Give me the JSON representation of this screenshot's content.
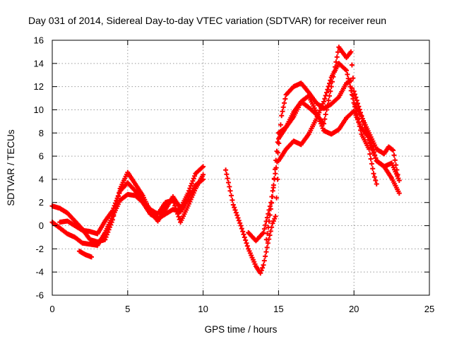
{
  "chart_data": {
    "type": "scatter",
    "title": "Day 031 of 2014, Sidereal Day-to-day VTEC variation (SDTVAR) for receiver reun",
    "xlabel": "GPS time / hours",
    "ylabel": "SDTVAR / TECUs",
    "xlim": [
      0,
      25
    ],
    "ylim": [
      -6,
      16
    ],
    "xticks": [
      0,
      5,
      10,
      15,
      20,
      25
    ],
    "yticks": [
      -6,
      -4,
      -2,
      0,
      2,
      4,
      6,
      8,
      10,
      12,
      14,
      16
    ],
    "grid": true,
    "marker": "plus",
    "color": "#ff0000",
    "series": [
      {
        "name": "s1",
        "points": [
          [
            0.0,
            1.7
          ],
          [
            0.5,
            1.5
          ],
          [
            1.0,
            1.1
          ],
          [
            1.5,
            0.4
          ],
          [
            2.0,
            -0.3
          ],
          [
            2.5,
            -1.2
          ],
          [
            3.0,
            -1.4
          ],
          [
            3.5,
            -1.2
          ],
          [
            4.0,
            0.5
          ],
          [
            4.5,
            3.2
          ],
          [
            5.0,
            4.6
          ],
          [
            5.5,
            3.6
          ],
          [
            6.0,
            2.6
          ],
          [
            6.5,
            1.2
          ],
          [
            7.0,
            0.4
          ],
          [
            7.5,
            1.4
          ],
          [
            8.0,
            2.5
          ],
          [
            8.5,
            1.5
          ],
          [
            9.0,
            2.8
          ],
          [
            9.5,
            4.5
          ],
          [
            10.0,
            5.1
          ]
        ]
      },
      {
        "name": "s2",
        "points": [
          [
            0.0,
            0.3
          ],
          [
            0.5,
            -0.2
          ],
          [
            1.0,
            -0.7
          ],
          [
            1.5,
            -1.0
          ],
          [
            2.0,
            -1.5
          ],
          [
            2.5,
            -1.6
          ],
          [
            3.0,
            -1.7
          ],
          [
            3.5,
            -0.6
          ],
          [
            4.0,
            0.8
          ],
          [
            4.5,
            2.2
          ],
          [
            5.0,
            2.7
          ],
          [
            5.5,
            2.6
          ],
          [
            6.0,
            2.0
          ],
          [
            6.5,
            1.0
          ],
          [
            7.0,
            0.6
          ],
          [
            7.5,
            1.0
          ],
          [
            8.0,
            1.4
          ],
          [
            8.5,
            1.2
          ],
          [
            9.0,
            2.3
          ],
          [
            9.5,
            3.5
          ],
          [
            10.0,
            4.0
          ]
        ]
      },
      {
        "name": "s3",
        "points": [
          [
            0.5,
            0.3
          ],
          [
            1.0,
            0.4
          ],
          [
            1.5,
            0.0
          ],
          [
            2.0,
            -0.4
          ],
          [
            2.5,
            -0.5
          ],
          [
            3.0,
            -0.7
          ],
          [
            3.5,
            0.4
          ],
          [
            4.0,
            1.3
          ],
          [
            4.5,
            3.0
          ],
          [
            5.0,
            3.7
          ],
          [
            5.5,
            3.0
          ],
          [
            6.0,
            2.2
          ],
          [
            6.5,
            1.4
          ],
          [
            7.0,
            1.0
          ],
          [
            7.5,
            2.0
          ],
          [
            8.0,
            2.2
          ],
          [
            8.5,
            0.3
          ],
          [
            9.0,
            1.7
          ],
          [
            9.5,
            3.2
          ],
          [
            10.0,
            4.4
          ]
        ]
      },
      {
        "name": "s4",
        "points": [
          [
            1.8,
            -2.2
          ],
          [
            2.2,
            -2.5
          ],
          [
            2.6,
            -2.7
          ]
        ]
      },
      {
        "name": "s5",
        "points": [
          [
            11.5,
            4.8
          ],
          [
            11.8,
            3.0
          ],
          [
            12.0,
            1.8
          ],
          [
            12.5,
            0.0
          ],
          [
            13.0,
            -2.0
          ],
          [
            13.5,
            -3.5
          ],
          [
            13.8,
            -4.1
          ],
          [
            14.0,
            -3.4
          ],
          [
            14.3,
            -1.5
          ],
          [
            14.6,
            0.2
          ],
          [
            14.8,
            0.8
          ],
          [
            15.0,
            5.6
          ],
          [
            15.5,
            6.6
          ],
          [
            16.0,
            7.3
          ],
          [
            16.5,
            7.0
          ],
          [
            17.0,
            7.9
          ],
          [
            17.5,
            9.2
          ],
          [
            18.0,
            10.7
          ],
          [
            18.5,
            12.8
          ],
          [
            19.0,
            14.0
          ],
          [
            19.5,
            13.4
          ],
          [
            20.0,
            10.6
          ],
          [
            20.5,
            7.9
          ],
          [
            21.0,
            6.6
          ],
          [
            21.3,
            4.5
          ],
          [
            21.5,
            3.6
          ]
        ]
      },
      {
        "name": "s6",
        "points": [
          [
            13.0,
            -0.6
          ],
          [
            13.5,
            -1.3
          ],
          [
            14.0,
            -0.6
          ],
          [
            14.5,
            2.0
          ],
          [
            14.9,
            5.5
          ],
          [
            15.2,
            9.5
          ],
          [
            15.5,
            11.3
          ],
          [
            16.0,
            12.0
          ],
          [
            16.5,
            12.3
          ],
          [
            17.0,
            11.5
          ],
          [
            17.5,
            10.6
          ],
          [
            18.0,
            10.1
          ],
          [
            18.5,
            10.5
          ],
          [
            19.0,
            11.1
          ],
          [
            19.5,
            12.3
          ],
          [
            19.8,
            12.5
          ],
          [
            20.0,
            10.6
          ],
          [
            20.5,
            9.4
          ],
          [
            21.0,
            8.0
          ],
          [
            21.5,
            6.6
          ],
          [
            22.0,
            6.2
          ],
          [
            22.3,
            6.8
          ],
          [
            22.6,
            6.5
          ],
          [
            22.9,
            4.4
          ]
        ]
      },
      {
        "name": "s7",
        "points": [
          [
            14.2,
            -1.2
          ],
          [
            14.6,
            2.5
          ],
          [
            15.0,
            8.0
          ],
          [
            15.5,
            8.5
          ],
          [
            16.0,
            9.8
          ],
          [
            16.5,
            10.7
          ],
          [
            17.0,
            10.2
          ],
          [
            17.5,
            9.6
          ],
          [
            18.0,
            8.8
          ],
          [
            18.5,
            12.0
          ],
          [
            19.0,
            15.4
          ],
          [
            19.5,
            14.5
          ],
          [
            19.8,
            15.0
          ],
          [
            20.0,
            11.6
          ],
          [
            20.5,
            9.5
          ],
          [
            21.0,
            7.4
          ],
          [
            21.5,
            5.6
          ],
          [
            22.0,
            5.1
          ],
          [
            22.5,
            4.1
          ],
          [
            23.0,
            2.8
          ]
        ]
      },
      {
        "name": "s8",
        "points": [
          [
            15.0,
            7.5
          ],
          [
            15.5,
            8.5
          ],
          [
            16.0,
            9.4
          ],
          [
            16.5,
            10.7
          ],
          [
            17.0,
            11.2
          ],
          [
            17.5,
            9.8
          ],
          [
            18.0,
            8.2
          ],
          [
            18.5,
            7.9
          ],
          [
            19.0,
            8.3
          ],
          [
            19.5,
            9.3
          ],
          [
            20.0,
            9.9
          ],
          [
            20.5,
            8.4
          ],
          [
            21.0,
            7.6
          ],
          [
            21.5,
            5.6
          ],
          [
            22.0,
            5.1
          ],
          [
            22.5,
            5.4
          ],
          [
            23.0,
            3.9
          ]
        ]
      }
    ]
  }
}
